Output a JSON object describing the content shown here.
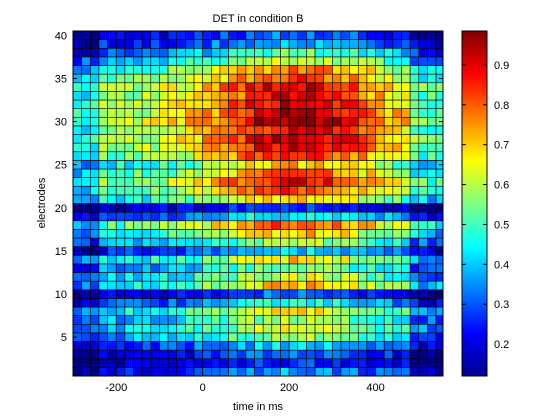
{
  "chart_data": {
    "type": "heatmap",
    "title": "DET in condition B",
    "xlabel": "time in ms",
    "ylabel": "electrodes",
    "xlim": [
      -300,
      556
    ],
    "ylim": [
      0.5,
      40.5
    ],
    "xticks": [
      -200,
      0,
      200,
      400
    ],
    "yticks": [
      5,
      10,
      15,
      20,
      25,
      30,
      35,
      40
    ],
    "colorbar": {
      "colormap": "jet",
      "clim": [
        0.12,
        0.985
      ],
      "ticks": [
        0.2,
        0.3,
        0.4,
        0.5,
        0.6,
        0.7,
        0.8,
        0.9
      ]
    },
    "grid": true,
    "legend": "none",
    "n_rows": 40,
    "n_cols": 43,
    "x_first": -290,
    "x_step": 20,
    "row_values": [
      0.32,
      0.25,
      0.28,
      0.36,
      0.5,
      0.55,
      0.52,
      0.6,
      0.4,
      0.28,
      0.62,
      0.55,
      0.48,
      0.6,
      0.35,
      0.52,
      0.62,
      0.72,
      0.4,
      0.25,
      0.62,
      0.72,
      0.78,
      0.7,
      0.62,
      0.75,
      0.8,
      0.82,
      0.78,
      0.85,
      0.82,
      0.8,
      0.78,
      0.8,
      0.72,
      0.68,
      0.55,
      0.45,
      0.35,
      0.28
    ],
    "time_profile": {
      "baseline": 0.7,
      "peak_ms": 220,
      "peak_gain": 0.45
    }
  }
}
